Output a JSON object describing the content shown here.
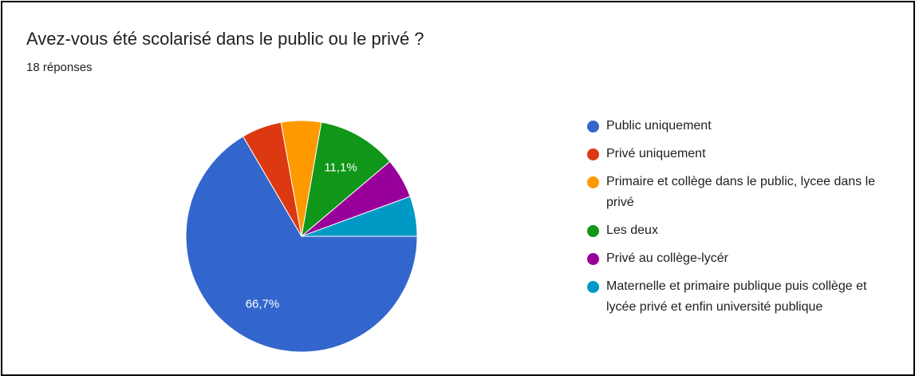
{
  "chart_data": {
    "type": "pie",
    "title": "Avez-vous été scolarisé dans le public ou le privé ?",
    "subtitle": "18 réponses",
    "categories": [
      "Public uniquement",
      "Privé uniquement",
      "Primaire et collège dans le public, lycee dans le privé",
      "Les deux",
      "Privé au collège-lycér",
      "Maternelle et primaire publique puis collège et lycée privé et enfin université publique"
    ],
    "values": [
      66.7,
      5.6,
      5.6,
      11.1,
      5.6,
      5.6
    ],
    "value_labels": [
      "66,7%",
      null,
      null,
      "11,1%",
      null,
      null
    ],
    "colors": [
      "#3366cc",
      "#dc3912",
      "#ff9900",
      "#109618",
      "#990099",
      "#0099c6"
    ],
    "legend": "right"
  }
}
